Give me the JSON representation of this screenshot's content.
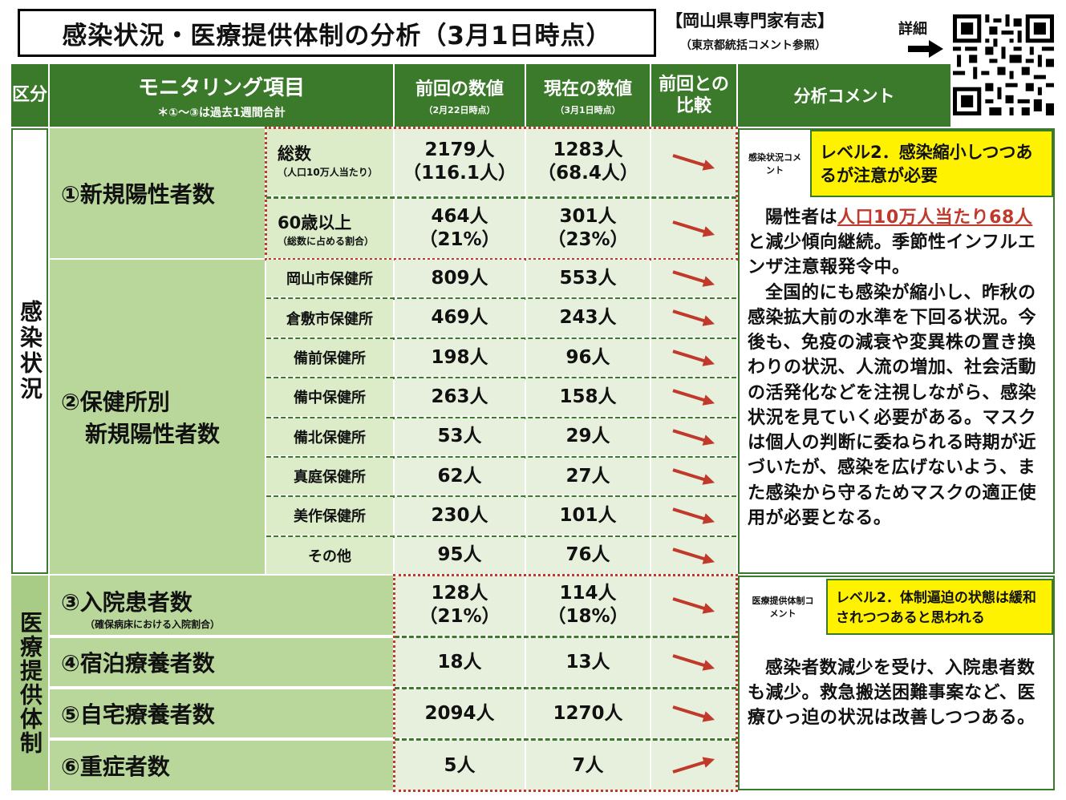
{
  "title": "感染状況・医療提供体制の分析（3月1日時点）",
  "expert": {
    "label": "【岡山県専門家有志】",
    "sub": "（東京都統括コメント参照）",
    "detail": "詳細"
  },
  "headers": {
    "category": "区分",
    "item": "モニタリング項目",
    "item_note": "＊①～③は過去1週間合計",
    "prev": "前回の数値",
    "prev_date": "（2月22日時点）",
    "curr": "現在の数値",
    "curr_date": "（3月1日時点）",
    "compare": "前回との比較",
    "comment": "分析コメント"
  },
  "sections": {
    "infection": "感染状況",
    "medical": "医療提供体制"
  },
  "rows": {
    "r1": {
      "label": "①新規陽性者数",
      "total": {
        "label": "総数",
        "note": "（人口10万人当たり）",
        "prev": "2179人",
        "prev_sub": "（116.1人）",
        "curr": "1283人",
        "curr_sub": "（68.4人）",
        "trend": "down"
      },
      "over60": {
        "label": "60歳以上",
        "note": "（総数に占める割合）",
        "prev": "464人",
        "prev_sub": "（21%）",
        "curr": "301人",
        "curr_sub": "（23%）",
        "trend": "down"
      }
    },
    "r2": {
      "label_line1": "②保健所別",
      "label_line2": "新規陽性者数",
      "items": [
        {
          "label": "岡山市保健所",
          "prev": "809人",
          "curr": "553人",
          "trend": "down"
        },
        {
          "label": "倉敷市保健所",
          "prev": "469人",
          "curr": "243人",
          "trend": "down"
        },
        {
          "label": "備前保健所",
          "prev": "198人",
          "curr": "96人",
          "trend": "down"
        },
        {
          "label": "備中保健所",
          "prev": "263人",
          "curr": "158人",
          "trend": "down"
        },
        {
          "label": "備北保健所",
          "prev": "53人",
          "curr": "29人",
          "trend": "down"
        },
        {
          "label": "真庭保健所",
          "prev": "62人",
          "curr": "27人",
          "trend": "down"
        },
        {
          "label": "美作保健所",
          "prev": "230人",
          "curr": "101人",
          "trend": "down"
        },
        {
          "label": "その他",
          "prev": "95人",
          "curr": "76人",
          "trend": "down"
        }
      ]
    },
    "r3": {
      "label": "③入院患者数",
      "note": "（確保病床における入院割合）",
      "prev": "128人",
      "prev_sub": "（21%）",
      "curr": "114人",
      "curr_sub": "（18%）",
      "trend": "down"
    },
    "r4": {
      "label": "④宿泊療養者数",
      "prev": "18人",
      "curr": "13人",
      "trend": "down"
    },
    "r5": {
      "label": "⑤自宅療養者数",
      "prev": "2094人",
      "curr": "1270人",
      "trend": "down"
    },
    "r6": {
      "label": "⑥重症者数",
      "prev": "5人",
      "curr": "7人",
      "trend": "up"
    }
  },
  "comments": {
    "infection_tag": "感染状況コメント",
    "infection_level": "レベル2．感染縮小しつつあるが注意が必要",
    "infection_text_pre": "陽性者は",
    "infection_text_red": "人口10万人当たり68人",
    "infection_text_post": "と減少傾向継続。季節性インフルエンザ注意報発令中。",
    "infection_text_2": "全国的にも感染が縮小し、昨秋の感染拡大前の水準を下回る状況。今後も、免疫の減衰や変異株の置き換わりの状況、人流の増加、社会活動の活発化などを注視しながら、感染状況を見ていく必要がある。マスクは個人の判断に委ねられる時期が近づいたが、感染を広げないよう、また感染から守るためマスクの適正使用が必要となる。",
    "medical_tag": "医療提供体制コメント",
    "medical_level": "レベル2．体制逼迫の状態は緩和されつつあると思われる",
    "medical_text": "感染者数減少を受け、入院患者数も減少。救急搬送困難事案など、医療ひっ迫の状況は改善しつつある。"
  },
  "colors": {
    "header_green": "#3a7a2a",
    "arrow_red": "#c0392b",
    "level_yellow": "#fff200"
  }
}
